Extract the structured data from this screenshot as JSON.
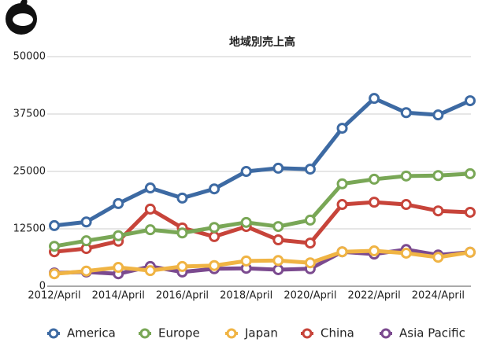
{
  "chart_data": {
    "type": "line",
    "title": "地域別売上高",
    "categories": [
      "2012/April",
      null,
      "2014/April",
      null,
      "2016/April",
      null,
      "2018/April",
      null,
      "2020/April",
      null,
      "2022/April",
      null,
      "2024/April",
      null
    ],
    "series": [
      {
        "name": "America",
        "color": "#3d6aa3",
        "values": [
          13200,
          14000,
          18000,
          21400,
          19200,
          21200,
          25000,
          25700,
          25500,
          34400,
          40900,
          37800,
          37300,
          40400
        ]
      },
      {
        "name": "Europe",
        "color": "#79a756",
        "values": [
          8700,
          9900,
          11000,
          12300,
          11600,
          12800,
          13900,
          13000,
          14400,
          22300,
          23300,
          24000,
          24100,
          24500
        ]
      },
      {
        "name": "Japan",
        "color": "#f0b444",
        "values": [
          2700,
          3300,
          4100,
          3400,
          4300,
          4500,
          5500,
          5600,
          5100,
          7500,
          7700,
          7200,
          6300,
          7400
        ]
      },
      {
        "name": "China",
        "color": "#c7443a",
        "values": [
          7500,
          8200,
          9800,
          16800,
          12700,
          10800,
          13000,
          10100,
          9400,
          17800,
          18300,
          17800,
          16400,
          16100
        ]
      },
      {
        "name": "Asia Pacific",
        "color": "#7b4a8f",
        "values": [
          2900,
          3100,
          2700,
          4300,
          3100,
          3800,
          3900,
          3600,
          3800,
          7500,
          7000,
          8000,
          6800,
          7400
        ]
      }
    ],
    "ylim": [
      0,
      50000
    ],
    "yticks": [
      0,
      12500,
      25000,
      37500,
      50000
    ],
    "grid": true
  }
}
